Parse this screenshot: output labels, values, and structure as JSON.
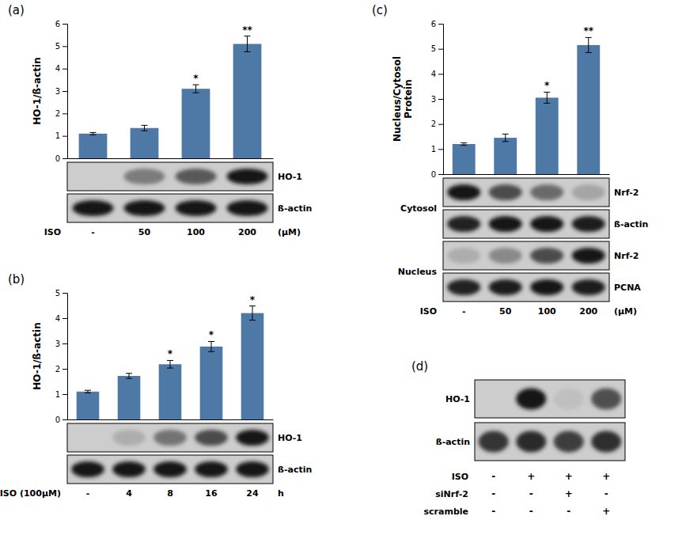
{
  "chart_data": [
    {
      "type": "bar",
      "title": "(a)",
      "categories": [
        "-",
        "50",
        "100",
        "200"
      ],
      "values": [
        1.1,
        1.35,
        3.1,
        5.1
      ],
      "errors": [
        0.05,
        0.12,
        0.18,
        0.35
      ],
      "annotations": [
        null,
        null,
        "*",
        "**"
      ],
      "xlabel": "ISO",
      "xlabel_unit": "(μM)",
      "ylabel": "HO-1/ß-actin",
      "ylim": [
        0,
        6
      ],
      "yticks": [
        0,
        1,
        2,
        3,
        4,
        5,
        6
      ],
      "grid": false,
      "blot_groups": [
        {
          "blots": [
            {
              "name": "HO-1",
              "values": [
                0.0,
                0.45,
                0.65,
                1.0
              ]
            },
            {
              "name": "ß-actin",
              "values": [
                1.0,
                1.0,
                1.0,
                1.0
              ]
            }
          ]
        }
      ]
    },
    {
      "type": "bar",
      "title": "(b)",
      "categories": [
        "-",
        "4",
        "8",
        "16",
        "24"
      ],
      "values": [
        1.1,
        1.72,
        2.18,
        2.88,
        4.2
      ],
      "errors": [
        0.05,
        0.1,
        0.15,
        0.2,
        0.28
      ],
      "annotations": [
        null,
        null,
        "*",
        "*",
        "*"
      ],
      "xlabel": "ISO (100μM)",
      "xlabel_unit": "h",
      "ylabel": "HO-1/ß-actin",
      "ylim": [
        0,
        5
      ],
      "yticks": [
        0,
        1,
        2,
        3,
        4,
        5
      ],
      "grid": false,
      "blot_groups": [
        {
          "blots": [
            {
              "name": "HO-1",
              "values": [
                0.0,
                0.18,
                0.5,
                0.72,
                1.0
              ]
            },
            {
              "name": "ß-actin",
              "values": [
                1.0,
                1.0,
                1.0,
                1.0,
                1.0
              ]
            }
          ]
        }
      ]
    },
    {
      "type": "bar",
      "title": "(c)",
      "categories": [
        "-",
        "50",
        "100",
        "200"
      ],
      "values": [
        1.2,
        1.45,
        3.05,
        5.15
      ],
      "errors": [
        0.05,
        0.15,
        0.22,
        0.3
      ],
      "annotations": [
        null,
        null,
        "*",
        "**"
      ],
      "xlabel": "ISO",
      "xlabel_unit": "(μM)",
      "ylabel": "Nucleus/Cytosol\nProtein",
      "ylim": [
        0,
        6
      ],
      "yticks": [
        0,
        1,
        2,
        3,
        4,
        5,
        6
      ],
      "grid": false,
      "blot_groups": [
        {
          "label": "Cytosol",
          "blots": [
            {
              "name": "Nrf-2",
              "values": [
                1.0,
                0.72,
                0.55,
                0.22
              ]
            },
            {
              "name": "ß-actin",
              "values": [
                0.95,
                1.0,
                1.0,
                0.98
              ]
            }
          ]
        },
        {
          "label": "Nucleus",
          "blots": [
            {
              "name": "Nrf-2",
              "values": [
                0.18,
                0.38,
                0.72,
                1.0
              ]
            },
            {
              "name": "PCNA",
              "values": [
                0.95,
                0.98,
                1.0,
                0.97
              ]
            }
          ]
        }
      ]
    },
    {
      "type": "blot",
      "title": "(d)",
      "blot_groups": [
        {
          "blots": [
            {
              "name": "HO-1",
              "values": [
                0.0,
                1.0,
                0.08,
                0.7
              ]
            },
            {
              "name": "ß-actin",
              "values": [
                0.85,
                0.9,
                0.8,
                0.88
              ]
            }
          ]
        }
      ],
      "table": [
        {
          "label": "ISO",
          "values": [
            "-",
            "+",
            "+",
            "+"
          ]
        },
        {
          "label": "siNrf-2",
          "values": [
            "-",
            "-",
            "+",
            "-"
          ]
        },
        {
          "label": "scramble",
          "values": [
            "-",
            "-",
            "-",
            "+"
          ]
        }
      ]
    }
  ]
}
